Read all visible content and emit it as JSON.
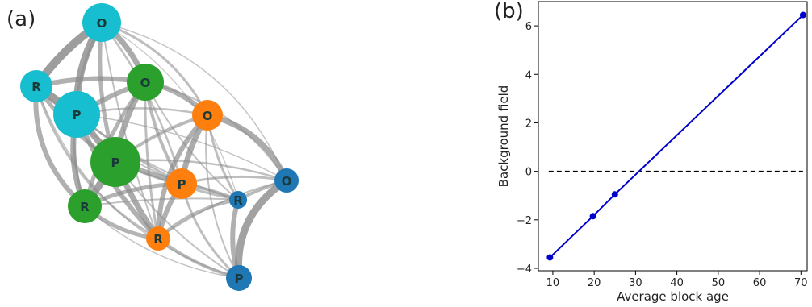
{
  "panels": {
    "network_label": "(a)",
    "plot_label": "(b)"
  },
  "network": {
    "nodes": [
      {
        "id": "c_O",
        "label": "O",
        "group": "cyan"
      },
      {
        "id": "c_R",
        "label": "R",
        "group": "cyan"
      },
      {
        "id": "c_P",
        "label": "P",
        "group": "cyan"
      },
      {
        "id": "g_O",
        "label": "O",
        "group": "green"
      },
      {
        "id": "g_P",
        "label": "P",
        "group": "green"
      },
      {
        "id": "g_R",
        "label": "R",
        "group": "green"
      },
      {
        "id": "o_O",
        "label": "O",
        "group": "orange"
      },
      {
        "id": "o_P",
        "label": "P",
        "group": "orange"
      },
      {
        "id": "o_R",
        "label": "R",
        "group": "orange"
      },
      {
        "id": "b_O",
        "label": "O",
        "group": "blue"
      },
      {
        "id": "b_R",
        "label": "R",
        "group": "blue"
      },
      {
        "id": "b_P",
        "label": "P",
        "group": "blue"
      }
    ],
    "colors": {
      "cyan": "#17becf",
      "green": "#2ca02c",
      "orange": "#ff7f0e",
      "blue": "#1f77b4",
      "edge": "#8c8c8c"
    }
  },
  "chart_data": {
    "type": "line",
    "xlabel": "Average block age",
    "ylabel": "Background field",
    "xlim": [
      6.5,
      71.5
    ],
    "ylim": [
      -4.1,
      7
    ],
    "xticks": [
      10,
      20,
      30,
      40,
      50,
      60,
      70
    ],
    "yticks": [
      -4,
      -2,
      0,
      2,
      4,
      6
    ],
    "ytick_labels": [
      "−4",
      "−2",
      "0",
      "2",
      "4",
      "6"
    ],
    "grid": false,
    "series": [
      {
        "x": [
          9.3,
          19.7,
          25.0,
          70.5
        ],
        "y": [
          -3.55,
          -1.85,
          -0.95,
          6.45
        ],
        "color": "#0000cc",
        "marker": "circle",
        "line": "solid"
      }
    ],
    "reference_lines": [
      {
        "y": 0,
        "style": "dashed",
        "color": "#000000"
      }
    ]
  }
}
